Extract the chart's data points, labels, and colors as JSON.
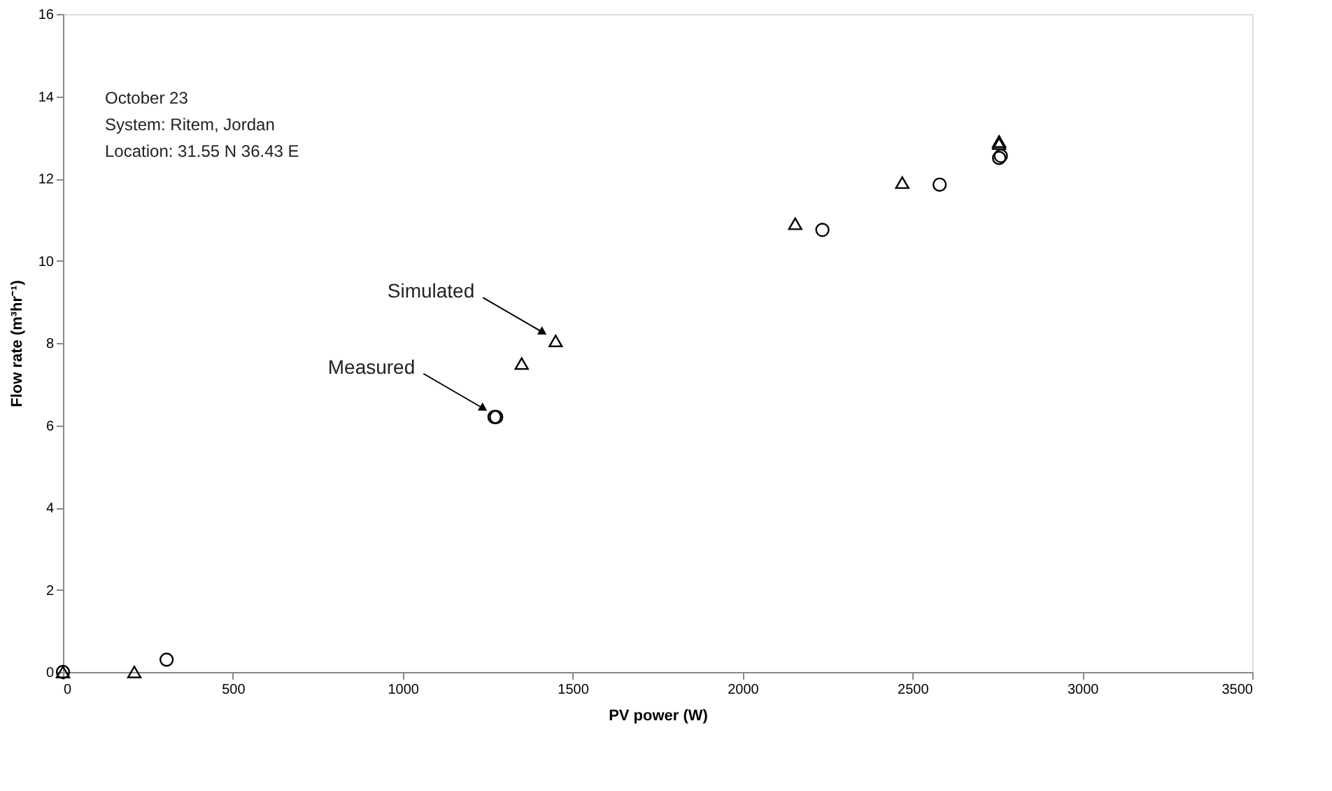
{
  "chart_data": {
    "type": "scatter",
    "xlabel": "PV power (W)",
    "ylabel": "Flow rate (m³hr⁻¹)",
    "xlim": [
      0,
      3500
    ],
    "xticks": [
      0,
      500,
      1000,
      1500,
      2000,
      2500,
      3000,
      3500
    ],
    "ylim": [
      0,
      16
    ],
    "yticks": [
      0,
      2,
      4,
      6,
      8,
      10,
      12,
      14,
      16
    ],
    "grid": false,
    "legend": false,
    "series": [
      {
        "name": "Measured",
        "marker": "circle",
        "color": "#000000",
        "x": [
          0,
          305,
          1270,
          1275,
          2235,
          2580,
          2755,
          2760
        ],
        "values": [
          0,
          0.3,
          6.2,
          6.2,
          10.75,
          11.85,
          12.5,
          12.55
        ]
      },
      {
        "name": "Simulated",
        "marker": "triangle",
        "color": "#000000",
        "x": [
          0,
          210,
          1350,
          1450,
          2155,
          2470,
          2755,
          2755
        ],
        "values": [
          0,
          0,
          7.5,
          8.05,
          10.9,
          11.9,
          12.9,
          12.85
        ]
      }
    ],
    "annotations": [
      "October 23",
      "System: Ritem, Jordan",
      "Location: 31.55 N  36.43 E"
    ]
  }
}
